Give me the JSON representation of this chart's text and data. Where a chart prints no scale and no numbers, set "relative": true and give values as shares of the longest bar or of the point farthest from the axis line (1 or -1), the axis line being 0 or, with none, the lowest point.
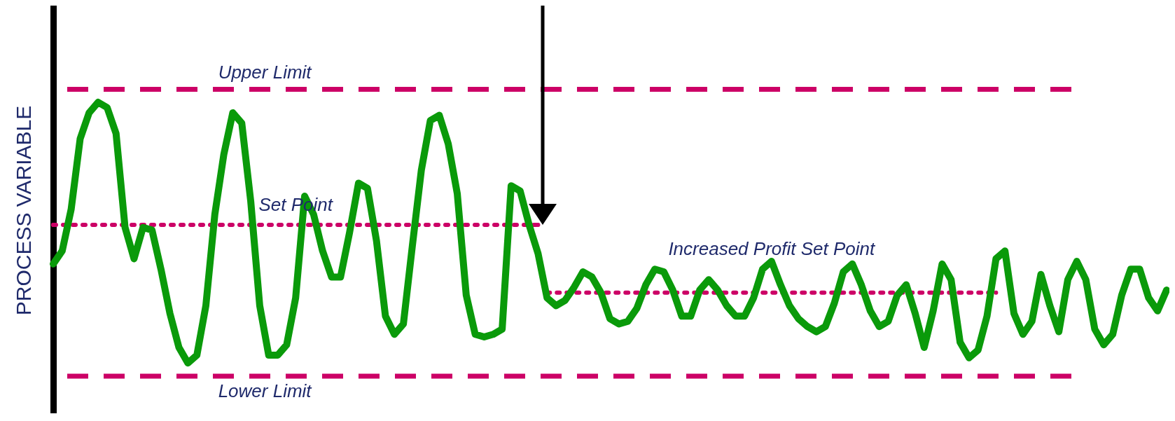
{
  "chart_data": {
    "type": "line",
    "relative": true,
    "ylabel": "PROCESS VARIABLE",
    "grid": false,
    "categories": [
      null,
      null,
      null,
      null,
      null,
      null,
      null,
      null,
      null,
      null,
      null,
      null,
      null,
      null,
      null,
      null,
      null,
      null,
      null,
      null,
      null,
      null,
      null,
      null,
      null,
      null,
      null,
      null,
      null,
      null,
      null,
      null,
      null,
      null,
      null,
      null,
      null,
      null,
      null,
      null,
      null,
      null,
      null,
      null,
      null,
      null,
      null,
      null,
      null,
      null,
      null,
      null,
      null,
      null,
      null,
      null,
      null,
      null,
      null,
      null,
      null,
      null,
      null,
      null,
      null,
      null,
      null,
      null,
      null,
      null,
      null,
      null,
      null,
      null,
      null,
      null,
      null,
      null,
      null,
      null,
      null,
      null,
      null,
      null,
      null,
      null,
      null,
      null,
      null,
      null,
      null,
      null,
      null,
      null,
      null,
      null,
      null,
      null,
      null,
      null,
      null,
      null,
      null,
      null,
      null,
      null,
      null,
      null,
      null,
      null,
      null,
      null,
      null,
      null,
      null,
      null,
      null,
      null,
      null,
      null,
      null,
      null,
      null,
      null,
      null
    ],
    "series": [
      {
        "color": "#0a9a0a",
        "line_style": "solid",
        "values": [
          0.38,
          0.43,
          0.59,
          0.86,
          0.96,
          1.0,
          0.98,
          0.88,
          0.52,
          0.4,
          0.52,
          0.51,
          0.36,
          0.19,
          0.06,
          0.0,
          0.03,
          0.22,
          0.57,
          0.8,
          0.96,
          0.92,
          0.62,
          0.22,
          0.03,
          0.03,
          0.07,
          0.25,
          0.64,
          0.57,
          0.43,
          0.33,
          0.33,
          0.5,
          0.69,
          0.67,
          0.47,
          0.18,
          0.11,
          0.15,
          0.45,
          0.74,
          0.93,
          0.95,
          0.84,
          0.65,
          0.26,
          0.11,
          0.1,
          0.11,
          0.13,
          0.68,
          0.66,
          0.53,
          0.42,
          0.25,
          0.22,
          0.24,
          0.29,
          0.35,
          0.33,
          0.27,
          0.17,
          0.15,
          0.16,
          0.21,
          0.3,
          0.36,
          0.35,
          0.28,
          0.18,
          0.18,
          0.28,
          0.32,
          0.28,
          0.22,
          0.18,
          0.18,
          0.25,
          0.36,
          0.39,
          0.3,
          0.22,
          0.17,
          0.14,
          0.12,
          0.14,
          0.23,
          0.35,
          0.38,
          0.3,
          0.2,
          0.14,
          0.16,
          0.26,
          0.3,
          0.19,
          0.06,
          0.2,
          0.38,
          0.32,
          0.08,
          0.02,
          0.05,
          0.18,
          0.4,
          0.43,
          0.19,
          0.11,
          0.16,
          0.34,
          0.22,
          0.12,
          0.32,
          0.39,
          0.32,
          0.13,
          0.07,
          0.11,
          0.26,
          0.36,
          0.36,
          0.25,
          0.2,
          0.28
        ]
      },
      {
        "name": "Set Point",
        "color": "#cc0066",
        "line_style": "dotted",
        "values": [
          0.53,
          0.53,
          0.53,
          0.53,
          0.53,
          0.53,
          0.53,
          0.53,
          0.53,
          0.53,
          0.53,
          0.53,
          0.53,
          0.53,
          0.53,
          0.53,
          0.53,
          0.53,
          0.53,
          0.53,
          0.53,
          0.53,
          0.53,
          0.53,
          0.53,
          0.53,
          0.53,
          0.53,
          0.53,
          0.53,
          0.53,
          0.53,
          0.53,
          0.53,
          0.53,
          0.53,
          0.53,
          0.53,
          0.53,
          0.53,
          0.53,
          0.53,
          0.53,
          0.53,
          0.53,
          0.53,
          0.53,
          0.53,
          0.53,
          0.53,
          0.53,
          0.53,
          0.53,
          0.53,
          0.53,
          null,
          null,
          null,
          null,
          null,
          null,
          null,
          null,
          null,
          null,
          null,
          null,
          null,
          null,
          null,
          null,
          null,
          null,
          null,
          null,
          null,
          null,
          null,
          null,
          null,
          null,
          null,
          null,
          null,
          null,
          null,
          null,
          null,
          null,
          null,
          null,
          null,
          null,
          null,
          null,
          null,
          null,
          null,
          null,
          null,
          null,
          null,
          null,
          null,
          null,
          null,
          null,
          null,
          null,
          null,
          null,
          null,
          null,
          null,
          null,
          null,
          null,
          null,
          null,
          null,
          null,
          null,
          null,
          null,
          null
        ]
      },
      {
        "name": "Increased Profit Set Point",
        "color": "#cc0066",
        "line_style": "dotted",
        "values": [
          null,
          null,
          null,
          null,
          null,
          null,
          null,
          null,
          null,
          null,
          null,
          null,
          null,
          null,
          null,
          null,
          null,
          null,
          null,
          null,
          null,
          null,
          null,
          null,
          null,
          null,
          null,
          null,
          null,
          null,
          null,
          null,
          null,
          null,
          null,
          null,
          null,
          null,
          null,
          null,
          null,
          null,
          null,
          null,
          null,
          null,
          null,
          null,
          null,
          null,
          null,
          null,
          null,
          null,
          null,
          0.27,
          0.27,
          0.27,
          0.27,
          0.27,
          0.27,
          0.27,
          0.27,
          0.27,
          0.27,
          0.27,
          0.27,
          0.27,
          0.27,
          0.27,
          0.27,
          0.27,
          0.27,
          0.27,
          0.27,
          0.27,
          0.27,
          0.27,
          0.27,
          0.27,
          0.27,
          0.27,
          0.27,
          0.27,
          0.27,
          0.27,
          0.27,
          0.27,
          0.27,
          0.27,
          0.27,
          0.27,
          0.27,
          0.27,
          0.27,
          0.27,
          0.27,
          0.27,
          0.27,
          0.27,
          0.27,
          0.27,
          0.27,
          0.27,
          0.27,
          0.27,
          null,
          null,
          null,
          null,
          null,
          null,
          null,
          null,
          null,
          null,
          null,
          null,
          null,
          null,
          null,
          null,
          null,
          null,
          null
        ]
      }
    ],
    "ref_lines": [
      {
        "axis": "y",
        "value": 1.05,
        "label": "Upper Limit",
        "color": "#cc0066",
        "line_style": "dashed"
      },
      {
        "axis": "y",
        "value": -0.05,
        "label": "Lower Limit",
        "color": "#cc0066",
        "line_style": "dashed"
      }
    ]
  }
}
